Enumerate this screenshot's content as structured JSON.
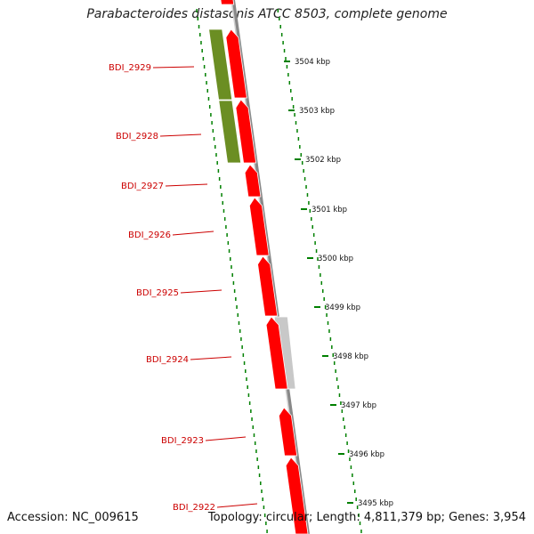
{
  "title": "Parabacteroides distasonis ATCC 8503, complete genome",
  "footer": {
    "accession": "Accession: NC_009615",
    "stats": "Topology: circular; Length: 4,811,379 bp; Genes: 3,954"
  },
  "colors": {
    "gene_red": "#ff0000",
    "gene_green": "#6b8e23",
    "gene_gray": "#c8c8c8",
    "label_red": "#cc0000",
    "tick_green": "#008000",
    "backbone": "#888888"
  },
  "genes": [
    {
      "label": "BDI_2929"
    },
    {
      "label": "BDI_2928"
    },
    {
      "label": "BDI_2927"
    },
    {
      "label": "BDI_2926"
    },
    {
      "label": "BDI_2925"
    },
    {
      "label": "BDI_2924"
    },
    {
      "label": "BDI_2923"
    },
    {
      "label": "BDI_2922"
    }
  ],
  "scale_ticks": [
    "3504 kbp",
    "3503 kbp",
    "3502 kbp",
    "3501 kbp",
    "3500 kbp",
    "3499 kbp",
    "3498 kbp",
    "3497 kbp",
    "3496 kbp",
    "3495 kbp"
  ]
}
